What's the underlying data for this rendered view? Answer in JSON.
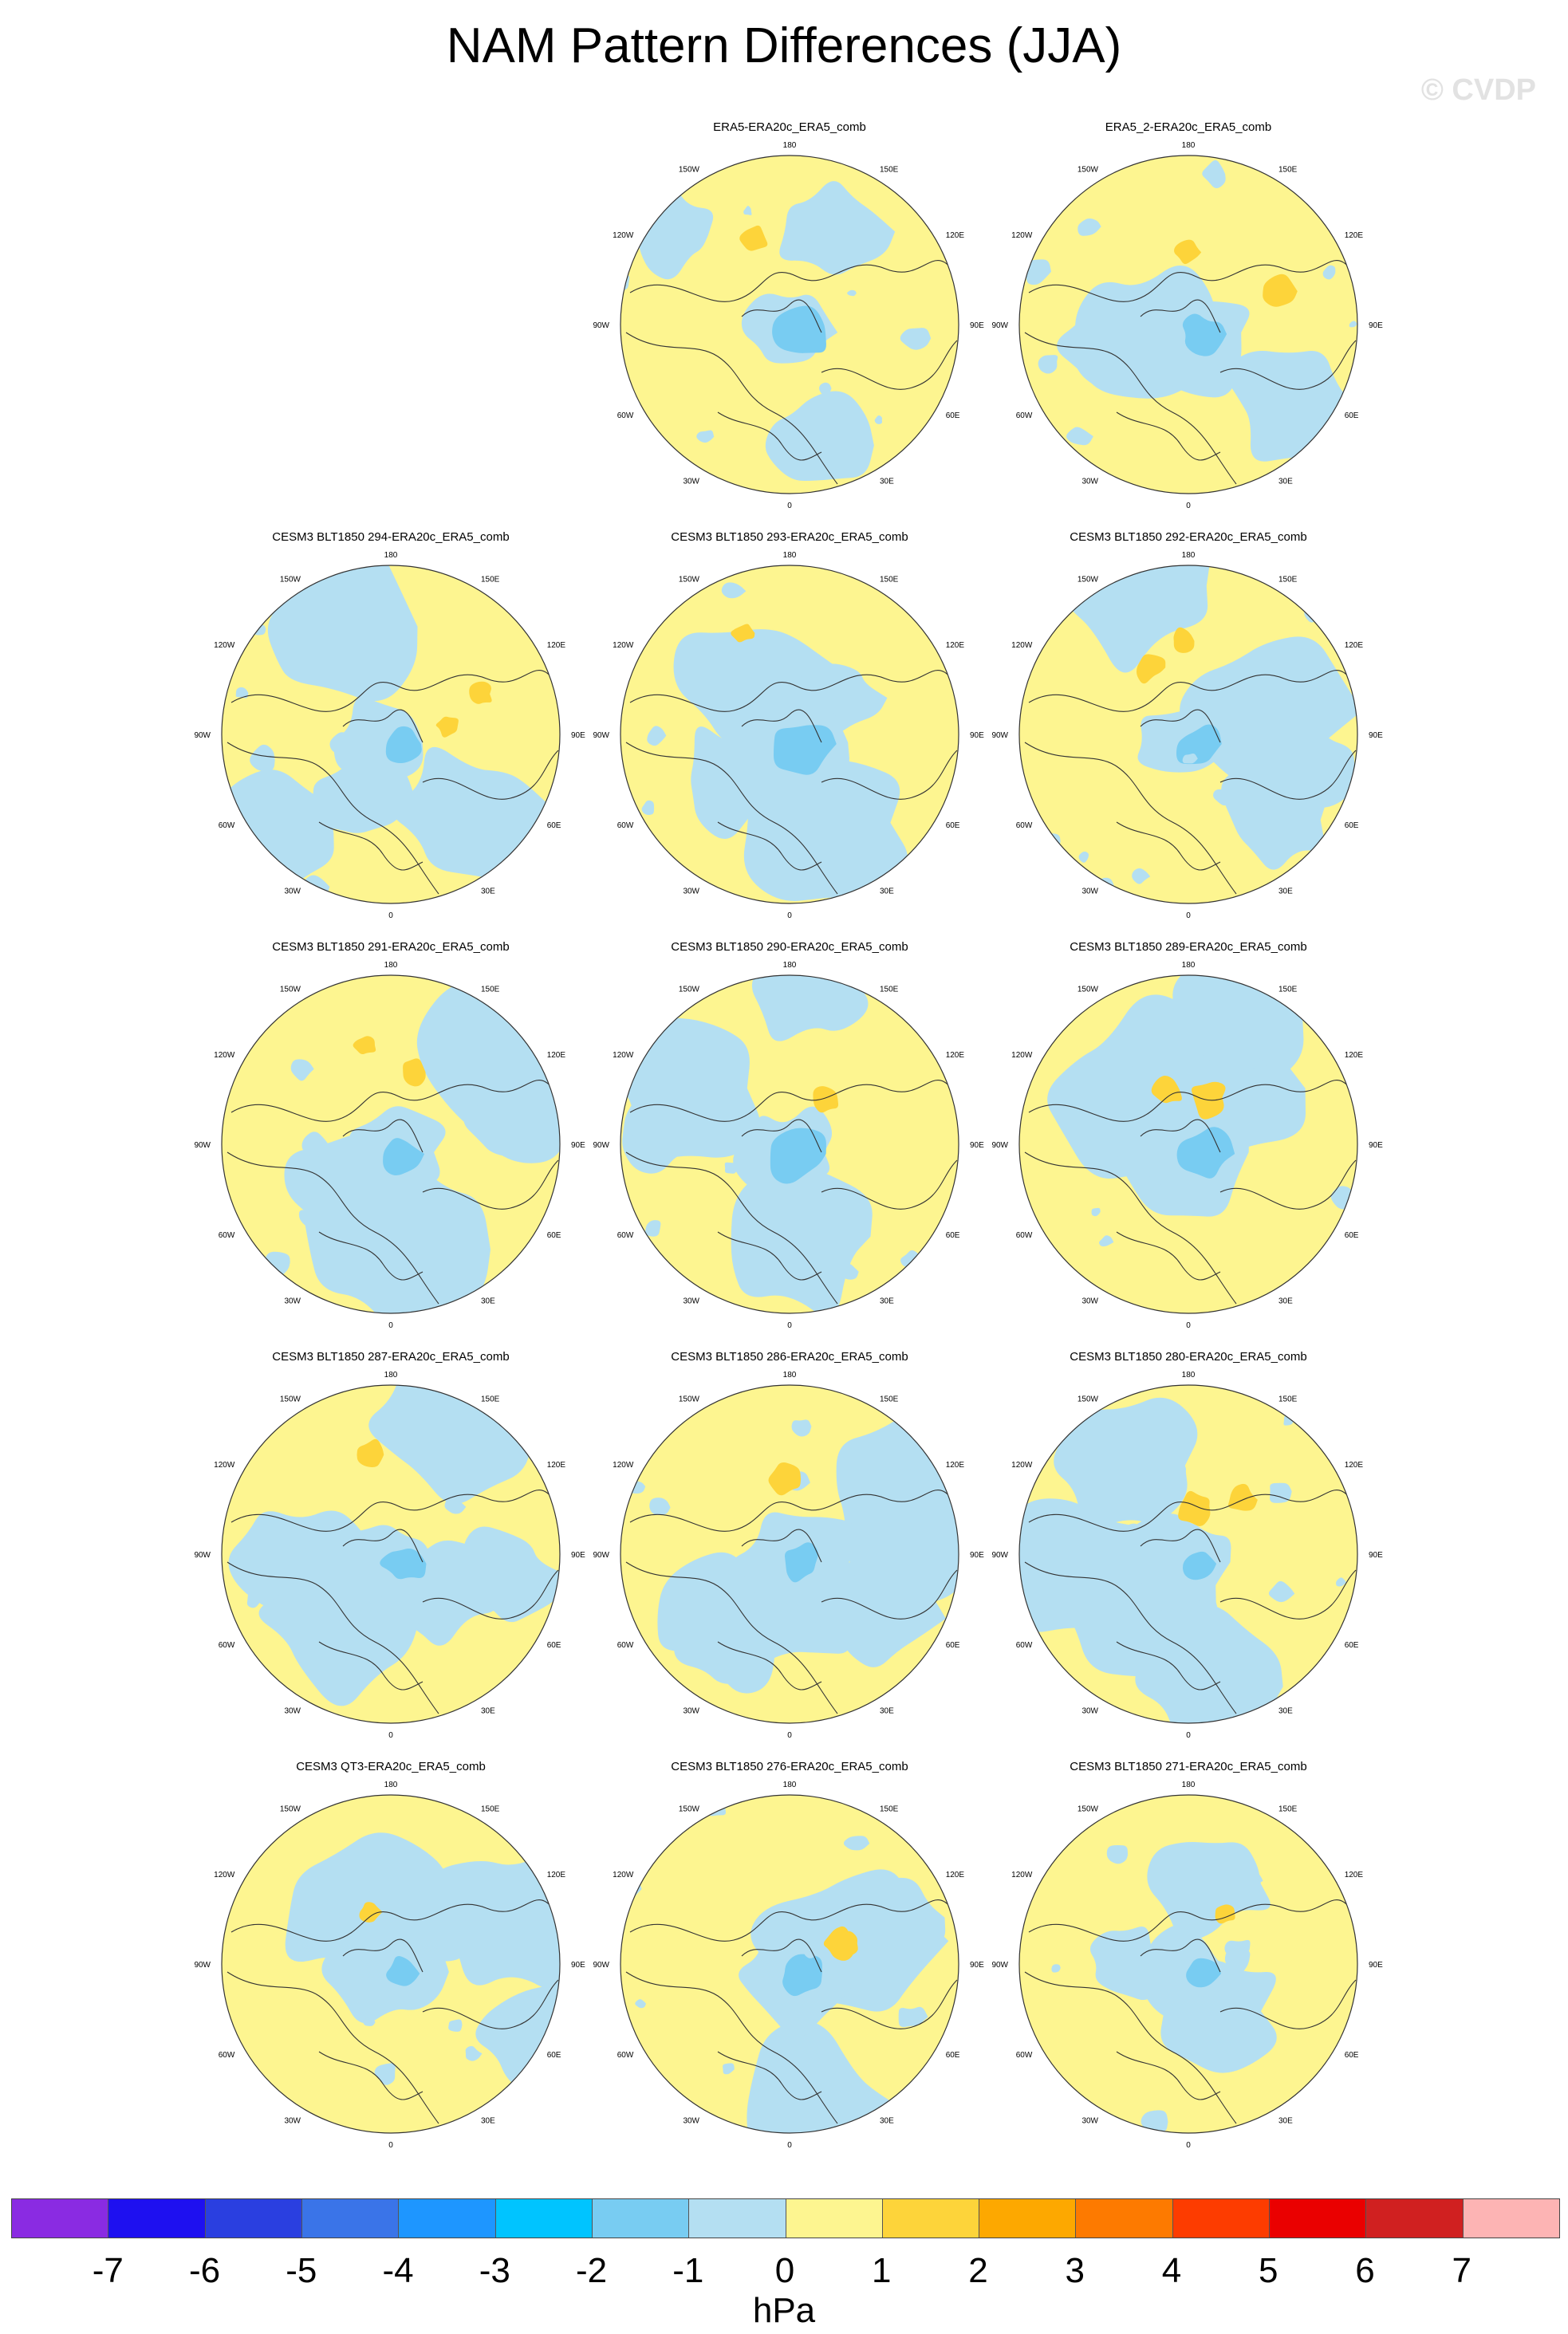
{
  "title": "NAM Pattern Differences (JJA)",
  "watermark": "© CVDP",
  "lon_labels": [
    "180",
    "150E",
    "120E",
    "90E",
    "60E",
    "30E",
    "0",
    "30W",
    "60W",
    "90W",
    "120W",
    "150W"
  ],
  "panels": [
    {
      "title": "ERA5-ERA20c_ERA5_comb",
      "row": 0,
      "col": 1,
      "variant": 0
    },
    {
      "title": "ERA5_2-ERA20c_ERA5_comb",
      "row": 0,
      "col": 2,
      "variant": 1
    },
    {
      "title": "CESM3 BLT1850 294-ERA20c_ERA5_comb",
      "row": 1,
      "col": 0,
      "variant": 2
    },
    {
      "title": "CESM3 BLT1850 293-ERA20c_ERA5_comb",
      "row": 1,
      "col": 1,
      "variant": 3
    },
    {
      "title": "CESM3 BLT1850 292-ERA20c_ERA5_comb",
      "row": 1,
      "col": 2,
      "variant": 4
    },
    {
      "title": "CESM3 BLT1850 291-ERA20c_ERA5_comb",
      "row": 2,
      "col": 0,
      "variant": 5
    },
    {
      "title": "CESM3 BLT1850 290-ERA20c_ERA5_comb",
      "row": 2,
      "col": 1,
      "variant": 6
    },
    {
      "title": "CESM3 BLT1850 289-ERA20c_ERA5_comb",
      "row": 2,
      "col": 2,
      "variant": 7
    },
    {
      "title": "CESM3 BLT1850 287-ERA20c_ERA5_comb",
      "row": 3,
      "col": 0,
      "variant": 8
    },
    {
      "title": "CESM3 BLT1850 286-ERA20c_ERA5_comb",
      "row": 3,
      "col": 1,
      "variant": 9
    },
    {
      "title": "CESM3 BLT1850 280-ERA20c_ERA5_comb",
      "row": 3,
      "col": 2,
      "variant": 10
    },
    {
      "title": "CESM3 QT3-ERA20c_ERA5_comb",
      "row": 4,
      "col": 0,
      "variant": 11
    },
    {
      "title": "CESM3 BLT1850 276-ERA20c_ERA5_comb",
      "row": 4,
      "col": 1,
      "variant": 12
    },
    {
      "title": "CESM3 BLT1850 271-ERA20c_ERA5_comb",
      "row": 4,
      "col": 2,
      "variant": 13
    }
  ],
  "colorbar": {
    "colors": [
      "#8a2be2",
      "#1e10f0",
      "#2a3fe0",
      "#3a74e8",
      "#1e96ff",
      "#00c4ff",
      "#78ccf2",
      "#b4dff2",
      "#fdf590",
      "#fdd43a",
      "#fda800",
      "#fd7a00",
      "#fd3c00",
      "#ea0000",
      "#d02020",
      "#fdb4b4"
    ],
    "ticks": [
      "-7",
      "-6",
      "-5",
      "-4",
      "-3",
      "-2",
      "-1",
      "0",
      "1",
      "2",
      "3",
      "4",
      "5",
      "6",
      "7"
    ],
    "units": "hPa"
  },
  "field_colors": {
    "neg2": "#78ccf2",
    "neg1": "#b4dff2",
    "pos0": "#fdf590",
    "pos1": "#fdd43a",
    "pos2": "#fda800"
  }
}
